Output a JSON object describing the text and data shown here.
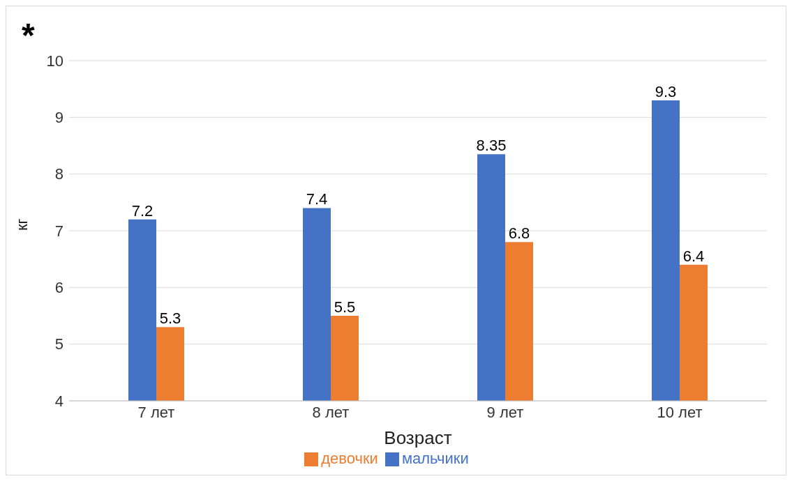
{
  "chart_data": {
    "type": "bar",
    "categories": [
      "7 лет",
      "8 лет",
      "9 лет",
      "10 лет"
    ],
    "xlabel": "Возраст",
    "ylabel": "кг",
    "annotations": [
      "*"
    ],
    "series": [
      {
        "name": "мальчики",
        "color": "#4472c4",
        "values": [
          7.2,
          7.4,
          8.35,
          9.3
        ]
      },
      {
        "name": "девочки",
        "color": "#ed7d31",
        "values": [
          5.3,
          5.5,
          6.8,
          6.4
        ]
      }
    ],
    "ylim": [
      4,
      10
    ],
    "yticks": [
      4,
      5,
      6,
      7,
      8,
      9,
      10
    ],
    "grid": "y",
    "legend": "bottom",
    "data_labels": true
  }
}
